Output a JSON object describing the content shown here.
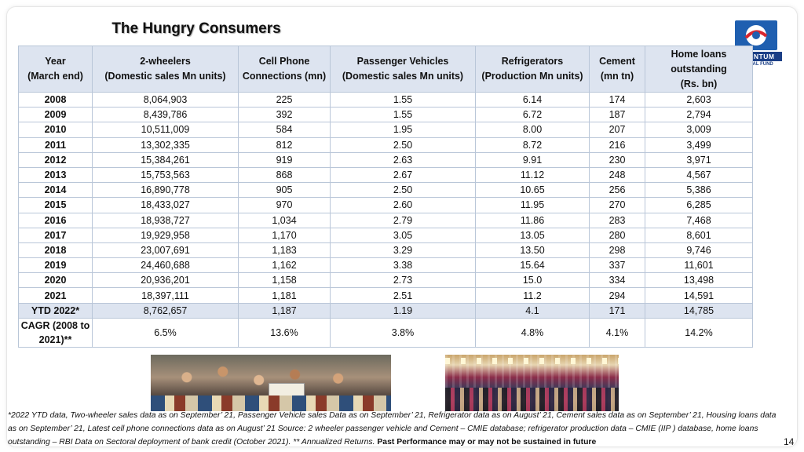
{
  "title": "The Hungry Consumers",
  "logo": {
    "brand": "QUANTUM",
    "sub": "MUTUAL FUND"
  },
  "table": {
    "headers": [
      [
        "Year",
        "(March end)"
      ],
      [
        "2-wheelers",
        "(Domestic sales Mn units)"
      ],
      [
        "Cell Phone",
        "Connections (mn)"
      ],
      [
        "Passenger Vehicles",
        "(Domestic sales Mn units)"
      ],
      [
        "Refrigerators",
        "(Production Mn units)"
      ],
      [
        "Cement",
        "(mn tn)"
      ],
      [
        "Home loans",
        "outstanding",
        "(Rs. bn)"
      ]
    ],
    "rows": [
      [
        "2008",
        "8,064,903",
        "225",
        "1.55",
        "6.14",
        "174",
        "2,603"
      ],
      [
        "2009",
        "8,439,786",
        "392",
        "1.55",
        "6.72",
        "187",
        "2,794"
      ],
      [
        "2010",
        "10,511,009",
        "584",
        "1.95",
        "8.00",
        "207",
        "3,009"
      ],
      [
        "2011",
        "13,302,335",
        "812",
        "2.50",
        "8.72",
        "216",
        "3,499"
      ],
      [
        "2012",
        "15,384,261",
        "919",
        "2.63",
        "9.91",
        "230",
        "3,971"
      ],
      [
        "2013",
        "15,753,563",
        "868",
        "2.67",
        "11.12",
        "248",
        "4,567"
      ],
      [
        "2014",
        "16,890,778",
        "905",
        "2.50",
        "10.65",
        "256",
        "5,386"
      ],
      [
        "2015",
        "18,433,027",
        "970",
        "2.60",
        "11.95",
        "270",
        "6,285"
      ],
      [
        "2016",
        "18,938,727",
        "1,034",
        "2.79",
        "11.86",
        "283",
        "7,468"
      ],
      [
        "2017",
        "19,929,958",
        "1,170",
        "3.05",
        "13.05",
        "280",
        "8,601"
      ],
      [
        "2018",
        "23,007,691",
        "1,183",
        "3.29",
        "13.50",
        "298",
        "9,746"
      ],
      [
        "2019",
        "24,460,688",
        "1,162",
        "3.38",
        "15.64",
        "337",
        "11,601"
      ],
      [
        "2020",
        "20,936,201",
        "1,158",
        "2.73",
        "15.0",
        "334",
        "13,498"
      ],
      [
        "2021",
        "18,397,111",
        "1,181",
        "2.51",
        "11.2",
        "294",
        "14,591"
      ]
    ],
    "ytd": [
      "YTD 2022*",
      "8,762,657",
      "1,187",
      "1.19",
      "4.1",
      "171",
      "14,785"
    ],
    "cagr": [
      "CAGR (2008 to 2021)**",
      "6.5%",
      "13.6%",
      "3.8%",
      "4.8%",
      "4.1%",
      "14.2%"
    ]
  },
  "footnote": "*2022 YTD data, Two-wheeler sales data as on September’ 21, Passenger Vehicle sales Data as on September’ 21, Refrigerator data as on August’ 21, Cement sales data as on September’ 21, Housing loans data as on September’ 21, Latest cell phone connections data as on August’ 21  Source: 2 wheeler passenger vehicle and Cement – CMIE database; refrigerator production data – CMIE (IIP ) database, home loans outstanding – RBI Data on Sectoral deployment of bank credit (October 2021). ** Annualized Returns. ",
  "disclaimer": "Past Performance may or may not be  sustained in future",
  "page_number": "14"
}
